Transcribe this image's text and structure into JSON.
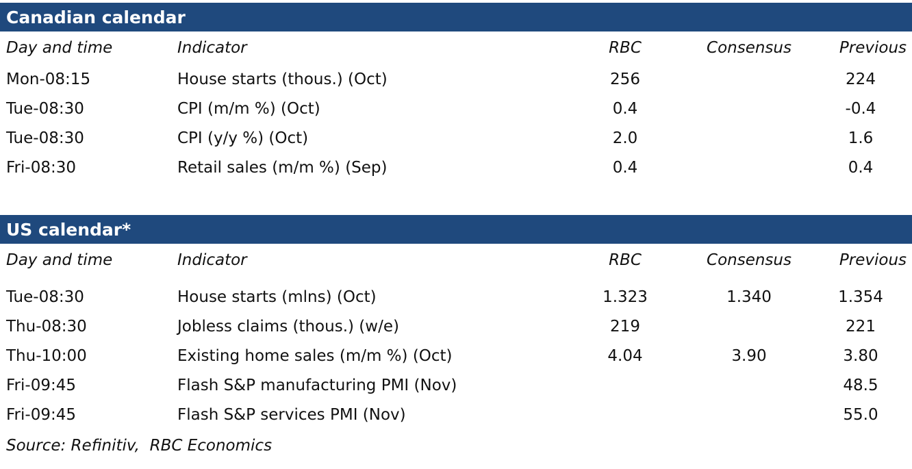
{
  "colors": {
    "header_bar_background": "#1f497d",
    "header_bar_text": "#ffffff",
    "body_text": "#111111"
  },
  "canadian_calendar": {
    "title": "Canadian calendar",
    "columns": {
      "day": "Day and time",
      "indicator": "Indicator",
      "rbc": "RBC",
      "consensus": "Consensus",
      "previous": "Previous"
    },
    "rows": [
      {
        "day": "Mon-08:15",
        "indicator": "House starts (thous.) (Oct)",
        "rbc": "256",
        "consensus": "",
        "previous": "224"
      },
      {
        "day": "Tue-08:30",
        "indicator": "CPI (m/m %) (Oct)",
        "rbc": "0.4",
        "consensus": "",
        "previous": "-0.4"
      },
      {
        "day": "Tue-08:30",
        "indicator": "CPI (y/y %) (Oct)",
        "rbc": "2.0",
        "consensus": "",
        "previous": "1.6"
      },
      {
        "day": "Fri-08:30",
        "indicator": "Retail sales (m/m %) (Sep)",
        "rbc": "0.4",
        "consensus": "",
        "previous": "0.4"
      }
    ]
  },
  "us_calendar": {
    "title": "US calendar*",
    "columns": {
      "day": "Day and time",
      "indicator": "Indicator",
      "rbc": "RBC",
      "consensus": "Consensus",
      "previous": "Previous"
    },
    "rows": [
      {
        "day": "Tue-08:30",
        "indicator": "House starts (mlns) (Oct)",
        "rbc": "1.323",
        "consensus": "1.340",
        "previous": "1.354"
      },
      {
        "day": "Thu-08:30",
        "indicator": "Jobless claims (thous.) (w/e)",
        "rbc": "219",
        "consensus": "",
        "previous": "221"
      },
      {
        "day": "Thu-10:00",
        "indicator": "Existing home sales (m/m %) (Oct)",
        "rbc": "4.04",
        "consensus": "3.90",
        "previous": "3.80"
      },
      {
        "day": "Fri-09:45",
        "indicator": "Flash S&P manufacturing PMI (Nov)",
        "rbc": "",
        "consensus": "",
        "previous": "48.5"
      },
      {
        "day": "Fri-09:45",
        "indicator": "Flash S&P services PMI (Nov)",
        "rbc": "",
        "consensus": "",
        "previous": "55.0"
      }
    ]
  },
  "source_note": "Source: Refinitiv,  RBC Economics"
}
